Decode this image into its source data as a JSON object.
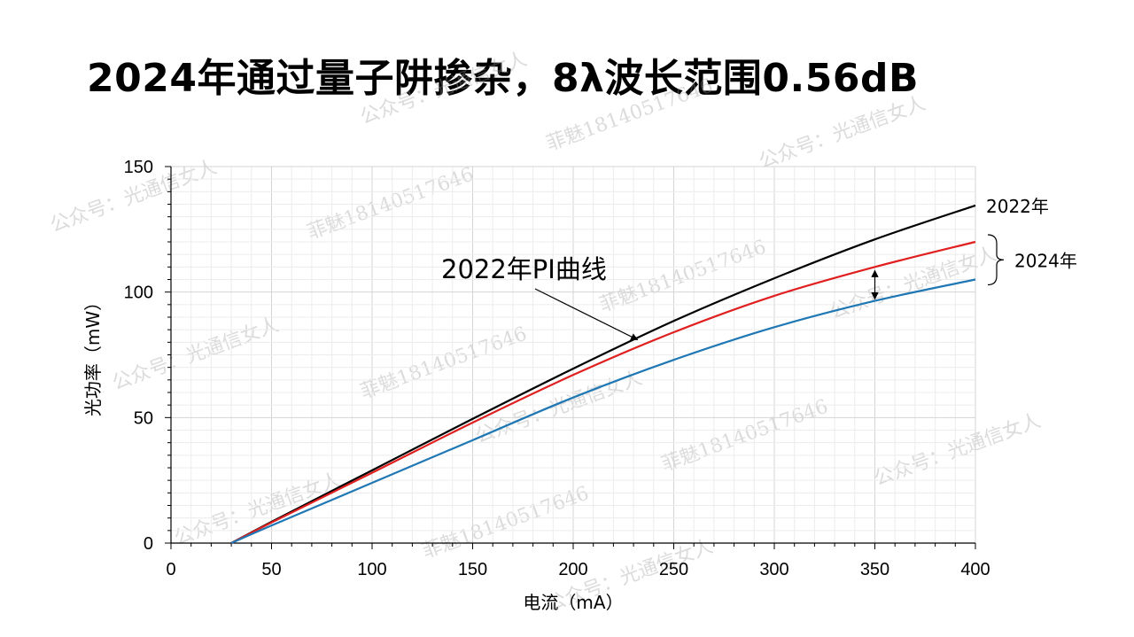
{
  "title": "2024年通过量子阱掺杂，8λ波长范围0.56dB",
  "watermarks": [
    "公众号：光通信女人",
    "菲魅18140517646"
  ],
  "chart_data": {
    "type": "line",
    "xlabel": "电流（mA）",
    "ylabel": "光功率（mW）",
    "xlim": [
      0,
      400
    ],
    "ylim": [
      0,
      150
    ],
    "xticks": [
      0,
      50,
      100,
      150,
      200,
      250,
      300,
      350,
      400
    ],
    "yticks": [
      0,
      50,
      100,
      150
    ],
    "grid": true,
    "series": [
      {
        "name": "2022年",
        "color": "#000000",
        "x": [
          30,
          50,
          100,
          150,
          200,
          250,
          300,
          350,
          400
        ],
        "y": [
          0,
          8.5,
          29,
          49.5,
          69.5,
          88.5,
          105.5,
          121,
          134.5
        ]
      },
      {
        "name": "2024年",
        "color": "#e02020",
        "x": [
          30,
          50,
          100,
          150,
          200,
          250,
          300,
          350,
          400
        ],
        "y": [
          0,
          8.2,
          28,
          48,
          67,
          84,
          98.5,
          110,
          120
        ]
      },
      {
        "name": "2024年",
        "color": "#1f77b4",
        "x": [
          30,
          50,
          100,
          150,
          200,
          250,
          300,
          350,
          400
        ],
        "y": [
          0,
          7,
          24,
          41,
          58,
          73,
          86,
          96.5,
          105
        ]
      }
    ],
    "annotations": {
      "arrow_label": "2022年PI曲线",
      "label_2022": "2022年",
      "label_2024": "2024年"
    }
  }
}
